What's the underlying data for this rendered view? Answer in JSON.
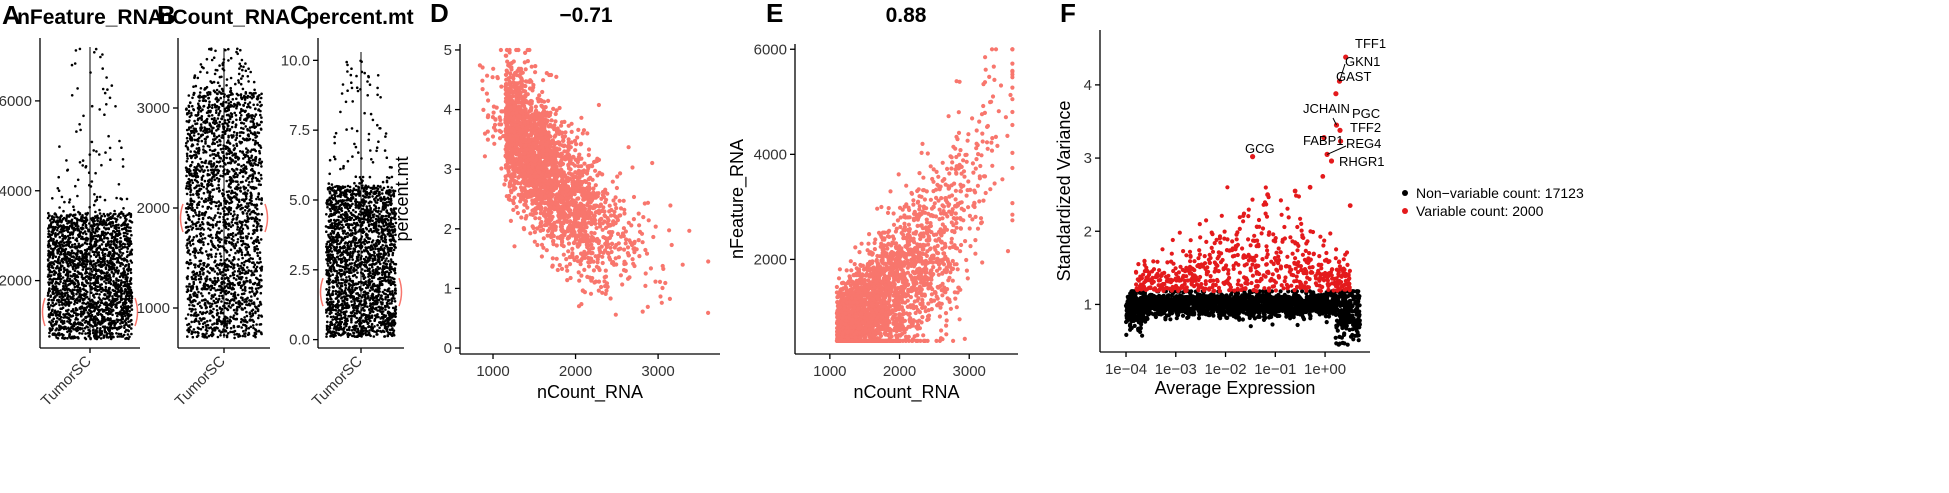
{
  "chart_data": [
    {
      "id": "A",
      "letter": "A",
      "type": "violin",
      "title": "nFeature_RNA",
      "xlabel": "",
      "ylabel": "",
      "categories": [
        "TumorSC"
      ],
      "ylim": [
        500,
        7400
      ],
      "yticks": [
        2000,
        4000,
        6000
      ],
      "summary": {
        "min": 700,
        "dense_max": 3500,
        "max": 7200,
        "median": 1300
      },
      "point_color": "#000000",
      "violin_color": "#F8766D"
    },
    {
      "id": "B",
      "letter": "B",
      "type": "violin",
      "title": "nCount_RNA",
      "xlabel": "",
      "ylabel": "",
      "categories": [
        "TumorSC"
      ],
      "ylim": [
        600,
        3700
      ],
      "yticks": [
        1000,
        2000,
        3000
      ],
      "summary": {
        "min": 700,
        "dense_max": 3150,
        "max": 3600,
        "median": 1900
      },
      "point_color": "#000000",
      "violin_color": "#F8766D"
    },
    {
      "id": "C",
      "letter": "C",
      "type": "violin",
      "title": "percent.mt",
      "xlabel": "",
      "ylabel": "",
      "categories": [
        "TumorSC"
      ],
      "ylim": [
        -0.3,
        10.8
      ],
      "yticks": [
        "0.0",
        "2.5",
        "5.0",
        "7.5",
        "10.0"
      ],
      "summary": {
        "min": 0.1,
        "dense_max": 5.5,
        "max": 10.3,
        "median": 1.7
      },
      "point_color": "#000000",
      "violin_color": "#F8766D"
    },
    {
      "id": "D",
      "letter": "D",
      "type": "scatter",
      "title": "−0.71",
      "xlabel": "nCount_RNA",
      "ylabel": "percent.mt",
      "xlim": [
        600,
        3750
      ],
      "ylim": [
        -0.1,
        5.1
      ],
      "xticks": [
        1000,
        2000,
        3000
      ],
      "yticks": [
        0,
        1,
        2,
        3,
        4,
        5
      ],
      "trend": {
        "correlation": -0.71,
        "points": [
          [
            1000,
            4.0
          ],
          [
            1300,
            3.6
          ],
          [
            2000,
            2.4
          ],
          [
            3000,
            1.6
          ],
          [
            3600,
            1.2
          ]
        ]
      },
      "point_color": "#F8766D"
    },
    {
      "id": "E",
      "letter": "E",
      "type": "scatter",
      "title": "0.88",
      "xlabel": "nCount_RNA",
      "ylabel": "nFeature_RNA",
      "xlim": [
        500,
        3700
      ],
      "ylim": [
        200,
        6100
      ],
      "xticks": [
        1000,
        2000,
        3000
      ],
      "yticks": [
        2000,
        4000,
        6000
      ],
      "trend": {
        "correlation": 0.88,
        "points": [
          [
            600,
            650
          ],
          [
            1300,
            800
          ],
          [
            2000,
            1500
          ],
          [
            2600,
            2400
          ],
          [
            3100,
            3600
          ],
          [
            3400,
            5000
          ]
        ]
      },
      "point_color": "#F8766D"
    },
    {
      "id": "F",
      "letter": "F",
      "type": "scatter",
      "title": "",
      "xlabel": "Average Expression",
      "ylabel": "Standardized Variance",
      "xscale": "log10",
      "xlim": [
        3e-05,
        8
      ],
      "ylim": [
        0.35,
        4.75
      ],
      "xticks": [
        {
          "value": 0.0001,
          "label": "1e−04"
        },
        {
          "value": 0.001,
          "label": "1e−03"
        },
        {
          "value": 0.01,
          "label": "1e−02"
        },
        {
          "value": 0.1,
          "label": "1e−01"
        },
        {
          "value": 1,
          "label": "1e+00"
        }
      ],
      "yticks": [
        1,
        2,
        3,
        4
      ],
      "series": [
        {
          "name": "Non−variable count: 17123",
          "color": "#000000",
          "count": 17123
        },
        {
          "name": "Variable count: 2000",
          "color": "#E41A1C",
          "count": 2000
        }
      ],
      "legend_position": "right",
      "labeled_genes": [
        {
          "gene": "TFF1",
          "x": 2.6,
          "y": 4.38
        },
        {
          "gene": "GKN1",
          "x": 1.95,
          "y": 4.05
        },
        {
          "gene": "GAST",
          "x": 1.65,
          "y": 3.88
        },
        {
          "gene": "JCHAIN",
          "x": 1.7,
          "y": 3.45
        },
        {
          "gene": "PGC",
          "x": 2.0,
          "y": 3.38
        },
        {
          "gene": "TFF2",
          "x": 2.05,
          "y": 3.23
        },
        {
          "gene": "FABP1",
          "x": 0.95,
          "y": 3.28
        },
        {
          "gene": "REG4",
          "x": 1.1,
          "y": 3.05
        },
        {
          "gene": "RHGR1",
          "x": 1.35,
          "y": 2.96
        },
        {
          "gene": "GCG",
          "x": 0.035,
          "y": 3.02
        }
      ],
      "extra_points": [
        [
          0.9,
          2.75
        ],
        [
          0.5,
          2.6
        ],
        [
          0.25,
          2.55
        ],
        [
          0.07,
          2.5
        ],
        [
          3.2,
          2.35
        ]
      ]
    }
  ]
}
